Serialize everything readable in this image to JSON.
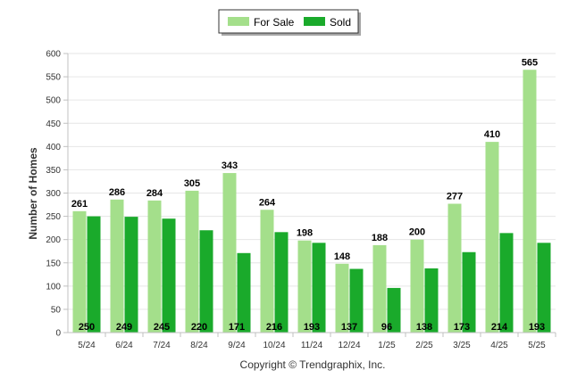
{
  "chart_data": {
    "type": "bar",
    "categories": [
      "5/24",
      "6/24",
      "7/24",
      "8/24",
      "9/24",
      "10/24",
      "11/24",
      "12/24",
      "1/25",
      "2/25",
      "3/25",
      "4/25",
      "5/25"
    ],
    "series": [
      {
        "name": "For Sale",
        "color": "#a4df8b",
        "values": [
          261,
          286,
          284,
          305,
          343,
          264,
          198,
          148,
          188,
          200,
          277,
          410,
          565
        ]
      },
      {
        "name": "Sold",
        "color": "#1aaa2b",
        "values": [
          250,
          249,
          245,
          220,
          171,
          216,
          193,
          137,
          96,
          138,
          173,
          214,
          193
        ]
      }
    ],
    "ylabel": "Number of Homes",
    "xlabel": "",
    "ylim": [
      0,
      600
    ],
    "yticks": [
      0,
      50,
      100,
      150,
      200,
      250,
      300,
      350,
      400,
      450,
      500,
      550,
      600
    ],
    "grid": true,
    "legend": "top-center",
    "credit": "Copyright © Trendgraphix, Inc."
  }
}
